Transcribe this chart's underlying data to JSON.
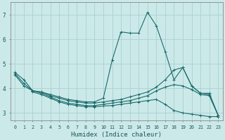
{
  "xlabel": "Humidex (Indice chaleur)",
  "xlim": [
    -0.5,
    23.5
  ],
  "ylim": [
    2.7,
    7.5
  ],
  "yticks": [
    3,
    4,
    5,
    6,
    7
  ],
  "xticks": [
    0,
    1,
    2,
    3,
    4,
    5,
    6,
    7,
    8,
    9,
    10,
    11,
    12,
    13,
    14,
    15,
    16,
    17,
    18,
    19,
    20,
    21,
    22,
    23
  ],
  "background_color": "#cce9e9",
  "line_color": "#1a6b6b",
  "grid_color": "#aacfcf",
  "lines": [
    {
      "x": [
        0,
        1,
        2,
        3,
        4,
        5,
        6,
        7,
        8,
        9,
        10,
        11,
        12,
        13,
        14,
        15,
        16,
        17,
        18,
        19,
        20,
        21,
        22,
        23
      ],
      "y": [
        4.65,
        4.35,
        3.9,
        3.85,
        3.75,
        3.65,
        3.55,
        3.5,
        3.45,
        3.45,
        3.6,
        5.15,
        6.3,
        6.25,
        6.25,
        7.1,
        6.55,
        5.5,
        4.35,
        4.85,
        4.1,
        3.8,
        3.8,
        2.9
      ]
    },
    {
      "x": [
        0,
        1,
        2,
        3,
        4,
        5,
        6,
        7,
        8,
        9,
        10,
        11,
        12,
        13,
        14,
        15,
        16,
        17,
        18,
        19,
        20,
        21,
        22,
        23
      ],
      "y": [
        4.6,
        4.2,
        3.9,
        3.85,
        3.7,
        3.6,
        3.5,
        3.45,
        3.4,
        3.4,
        3.45,
        3.5,
        3.55,
        3.65,
        3.75,
        3.85,
        4.05,
        4.35,
        4.75,
        4.85,
        4.1,
        3.8,
        3.75,
        2.9
      ]
    },
    {
      "x": [
        0,
        1,
        2,
        3,
        4,
        5,
        6,
        7,
        8,
        9,
        10,
        11,
        12,
        13,
        14,
        15,
        16,
        17,
        18,
        19,
        20,
        21,
        22,
        23
      ],
      "y": [
        4.55,
        4.1,
        3.9,
        3.8,
        3.65,
        3.5,
        3.4,
        3.35,
        3.3,
        3.3,
        3.35,
        3.4,
        3.45,
        3.5,
        3.6,
        3.7,
        3.9,
        4.05,
        4.15,
        4.1,
        3.95,
        3.75,
        3.7,
        2.9
      ]
    },
    {
      "x": [
        2,
        3,
        4,
        5,
        6,
        7,
        8,
        9,
        10,
        11,
        12,
        13,
        14,
        15,
        16,
        17,
        18,
        19,
        20,
        21,
        22,
        23
      ],
      "y": [
        3.85,
        3.75,
        3.6,
        3.45,
        3.35,
        3.3,
        3.25,
        3.25,
        3.28,
        3.3,
        3.35,
        3.4,
        3.45,
        3.5,
        3.55,
        3.35,
        3.1,
        3.0,
        2.95,
        2.9,
        2.85,
        2.85
      ]
    }
  ]
}
